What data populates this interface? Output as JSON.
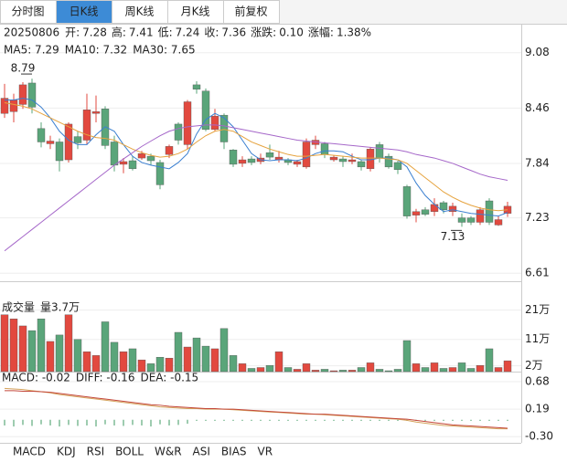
{
  "top_tabs": {
    "items": [
      "分时图",
      "日K线",
      "周K线",
      "月K线",
      "前复权"
    ],
    "active": 1
  },
  "header": {
    "date": "20250806",
    "items": [
      {
        "label": "开:",
        "value": "7.28"
      },
      {
        "label": "高:",
        "value": "7.41"
      },
      {
        "label": "低:",
        "value": "7.24"
      },
      {
        "label": "收:",
        "value": "7.36"
      },
      {
        "label": "涨跌:",
        "value": "0.10"
      },
      {
        "label": "涨幅:",
        "value": "1.38%"
      }
    ]
  },
  "chart_data": [
    {
      "type": "candlestick",
      "up_color": "#e2493f",
      "down_color": "#5aa57a",
      "grid": true,
      "ylim": [
        6.52,
        9.21
      ],
      "yticks": [
        9.08,
        8.46,
        7.84,
        7.23,
        6.61
      ],
      "open": [
        8.4,
        8.42,
        8.5,
        8.74,
        8.23,
        8.06,
        8.08,
        7.88,
        8.14,
        8.1,
        8.4,
        8.45,
        8.08,
        7.83,
        7.87,
        7.9,
        7.92,
        7.85,
        7.94,
        8.28,
        8.05,
        8.72,
        8.65,
        8.22,
        8.38,
        7.99,
        7.84,
        7.89,
        7.86,
        7.96,
        7.88,
        7.88,
        7.83,
        7.8,
        8.05,
        8.06,
        7.88,
        7.89,
        7.86,
        7.86,
        7.78,
        8.05,
        7.92,
        7.85,
        7.58,
        7.26,
        7.32,
        7.3,
        7.4,
        7.3,
        7.23,
        7.23,
        7.18,
        7.42,
        7.15,
        7.28
      ],
      "high": [
        8.73,
        8.62,
        8.75,
        8.79,
        8.3,
        8.15,
        8.12,
        8.3,
        8.2,
        8.62,
        8.6,
        8.48,
        8.15,
        7.9,
        7.92,
        7.98,
        7.95,
        7.88,
        8.05,
        8.3,
        8.55,
        8.76,
        8.68,
        8.45,
        8.4,
        8.0,
        7.92,
        7.92,
        7.95,
        8.05,
        7.98,
        7.9,
        7.88,
        8.12,
        8.15,
        8.08,
        7.93,
        7.92,
        7.95,
        7.88,
        8.02,
        8.08,
        7.95,
        7.87,
        7.6,
        7.33,
        7.35,
        7.45,
        7.42,
        7.4,
        7.28,
        7.25,
        7.35,
        7.45,
        7.25,
        7.41
      ],
      "low": [
        8.35,
        8.3,
        8.45,
        8.4,
        8.02,
        8.0,
        7.75,
        7.85,
        8.0,
        8.05,
        8.3,
        8.0,
        7.75,
        7.73,
        7.76,
        7.88,
        7.82,
        7.55,
        7.9,
        8.05,
        8.0,
        8.62,
        8.2,
        8.2,
        8.0,
        7.8,
        7.8,
        7.82,
        7.83,
        7.88,
        7.85,
        7.82,
        7.8,
        7.78,
        8.0,
        7.9,
        7.86,
        7.8,
        7.83,
        7.76,
        7.75,
        7.85,
        7.78,
        7.72,
        7.22,
        7.18,
        7.25,
        7.25,
        7.28,
        7.25,
        7.13,
        7.15,
        7.15,
        7.15,
        7.14,
        7.24
      ],
      "close": [
        8.57,
        8.55,
        8.72,
        8.47,
        8.08,
        8.09,
        7.87,
        8.28,
        8.07,
        8.44,
        8.42,
        8.04,
        7.82,
        7.86,
        7.78,
        7.95,
        7.87,
        7.6,
        8.03,
        8.1,
        8.53,
        8.67,
        8.22,
        8.37,
        8.08,
        7.83,
        7.88,
        7.85,
        7.9,
        7.91,
        7.91,
        7.85,
        7.86,
        8.08,
        8.1,
        7.94,
        7.91,
        7.86,
        7.88,
        7.8,
        8.0,
        7.9,
        7.8,
        7.77,
        7.25,
        7.3,
        7.27,
        7.38,
        7.32,
        7.36,
        7.18,
        7.18,
        7.32,
        7.18,
        7.21,
        7.36
      ],
      "series": [
        {
          "name": "MA5: 7.29",
          "color": "#3a7fd0",
          "values": [
            8.55,
            8.55,
            8.57,
            8.55,
            8.47,
            8.35,
            8.2,
            8.1,
            8.05,
            8.05,
            8.16,
            8.25,
            8.2,
            8.05,
            7.92,
            7.85,
            7.82,
            7.8,
            7.78,
            7.85,
            7.95,
            8.17,
            8.33,
            8.4,
            8.35,
            8.25,
            8.1,
            7.95,
            7.88,
            7.87,
            7.88,
            7.88,
            7.87,
            7.9,
            7.95,
            7.98,
            7.98,
            7.97,
            7.92,
            7.88,
            7.88,
            7.9,
            7.9,
            7.88,
            7.8,
            7.62,
            7.48,
            7.38,
            7.3,
            7.32,
            7.3,
            7.28,
            7.27,
            7.26,
            7.25,
            7.29
          ]
        },
        {
          "name": "MA10: 7.32",
          "color": "#e6a33e",
          "values": [
            8.52,
            8.5,
            8.48,
            8.45,
            8.4,
            8.35,
            8.3,
            8.25,
            8.2,
            8.16,
            8.13,
            8.12,
            8.1,
            8.05,
            8.0,
            7.96,
            7.93,
            7.91,
            7.92,
            7.95,
            8.0,
            8.08,
            8.15,
            8.2,
            8.22,
            8.2,
            8.14,
            8.08,
            8.04,
            8.0,
            7.97,
            7.94,
            7.92,
            7.92,
            7.93,
            7.94,
            7.93,
            7.92,
            7.91,
            7.9,
            7.9,
            7.9,
            7.89,
            7.88,
            7.84,
            7.76,
            7.68,
            7.6,
            7.52,
            7.46,
            7.41,
            7.37,
            7.34,
            7.32,
            7.31,
            7.32
          ]
        },
        {
          "name": "MA30: 7.65",
          "color": "#a567c9",
          "values": [
            6.86,
            6.94,
            7.02,
            7.1,
            7.18,
            7.26,
            7.34,
            7.42,
            7.5,
            7.58,
            7.66,
            7.74,
            7.82,
            7.89,
            7.96,
            8.03,
            8.09,
            8.15,
            8.2,
            8.23,
            8.25,
            8.26,
            8.27,
            8.27,
            8.26,
            8.24,
            8.22,
            8.2,
            8.18,
            8.16,
            8.14,
            8.12,
            8.1,
            8.09,
            8.08,
            8.07,
            8.06,
            8.05,
            8.04,
            8.03,
            8.02,
            8.01,
            8.0,
            7.99,
            7.97,
            7.94,
            7.92,
            7.9,
            7.87,
            7.84,
            7.8,
            7.76,
            7.72,
            7.69,
            7.67,
            7.65
          ]
        }
      ]
    },
    {
      "type": "bar",
      "title": "成交量",
      "subtitle": "量3.7万",
      "ylim": [
        0,
        24
      ],
      "yticks": [
        {
          "value": 21,
          "label": "21万"
        },
        {
          "value": 11,
          "label": "11万"
        },
        {
          "value": 2,
          "label": "2万"
        }
      ],
      "values": [
        19.4,
        18,
        15.6,
        14,
        18,
        10.3,
        12.5,
        19.4,
        11,
        6.8,
        5.5,
        17,
        10,
        6.8,
        7.8,
        4,
        2.7,
        4.9,
        4.6,
        13.4,
        8.4,
        11.5,
        8.7,
        7.8,
        14.7,
        5.5,
        2.7,
        1.1,
        1.4,
        2.1,
        6.8,
        1.4,
        0.8,
        2.7,
        0.5,
        0.8,
        0.3,
        0.5,
        0.5,
        1.4,
        3,
        0.8,
        0.3,
        0.8,
        10.6,
        2.7,
        1.4,
        3,
        1.1,
        1.4,
        3,
        1.1,
        2.1,
        7.8,
        1.4,
        3.7
      ]
    },
    {
      "type": "macd",
      "ylim": [
        -0.41,
        0.81
      ],
      "yticks": [
        0.68,
        0.19,
        {
          "value": -0.3,
          "label": "-0.30"
        }
      ],
      "series": [
        {
          "name": "MACD: -0.02",
          "color": "#333333",
          "values": [
            -0.1,
            -0.12,
            -0.09,
            -0.11,
            -0.08,
            -0.1,
            -0.12,
            -0.09,
            -0.11,
            -0.1,
            -0.12,
            -0.08,
            -0.1,
            -0.11,
            -0.09,
            -0.1,
            -0.12,
            -0.08,
            -0.1,
            -0.09,
            -0.07,
            -0.02,
            -0.02,
            -0.02,
            -0.02,
            -0.02,
            -0.02,
            -0.02,
            -0.02,
            -0.02,
            -0.02,
            -0.02,
            -0.02,
            -0.02,
            -0.02,
            -0.02,
            -0.02,
            -0.02,
            -0.02,
            -0.02,
            -0.02,
            -0.02,
            -0.02,
            -0.02,
            -0.02,
            -0.02,
            -0.02,
            -0.02,
            -0.02,
            -0.02,
            -0.02,
            -0.02,
            -0.02,
            -0.02,
            -0.02,
            -0.02
          ]
        },
        {
          "name": "DIFF: -0.16",
          "color": "#d4a35c",
          "values": [
            0.56,
            0.55,
            0.54,
            0.52,
            0.5,
            0.48,
            0.45,
            0.43,
            0.41,
            0.39,
            0.37,
            0.35,
            0.33,
            0.31,
            0.29,
            0.27,
            0.25,
            0.23,
            0.22,
            0.21,
            0.2,
            0.2,
            0.19,
            0.19,
            0.19,
            0.18,
            0.17,
            0.16,
            0.15,
            0.14,
            0.13,
            0.12,
            0.11,
            0.1,
            0.1,
            0.09,
            0.08,
            0.07,
            0.06,
            0.05,
            0.04,
            0.03,
            0.02,
            0.01,
            -0.01,
            -0.04,
            -0.06,
            -0.08,
            -0.1,
            -0.11,
            -0.12,
            -0.13,
            -0.14,
            -0.15,
            -0.16,
            -0.16
          ]
        },
        {
          "name": "DEA: -0.15",
          "color": "#c4473a",
          "values": [
            0.52,
            0.52,
            0.51,
            0.51,
            0.5,
            0.49,
            0.47,
            0.45,
            0.43,
            0.41,
            0.39,
            0.37,
            0.35,
            0.33,
            0.31,
            0.29,
            0.27,
            0.26,
            0.24,
            0.23,
            0.22,
            0.21,
            0.2,
            0.2,
            0.19,
            0.19,
            0.18,
            0.17,
            0.16,
            0.15,
            0.14,
            0.13,
            0.12,
            0.11,
            0.1,
            0.1,
            0.09,
            0.08,
            0.07,
            0.06,
            0.05,
            0.04,
            0.03,
            0.02,
            0.01,
            -0.01,
            -0.03,
            -0.05,
            -0.07,
            -0.09,
            -0.1,
            -0.11,
            -0.12,
            -0.13,
            -0.14,
            -0.15
          ]
        }
      ]
    }
  ],
  "bottom_tabs": {
    "items": [
      "MACD",
      "KDJ",
      "RSI",
      "BOLL",
      "W&R",
      "ASI",
      "BIAS",
      "VR"
    ],
    "active": 0
  }
}
